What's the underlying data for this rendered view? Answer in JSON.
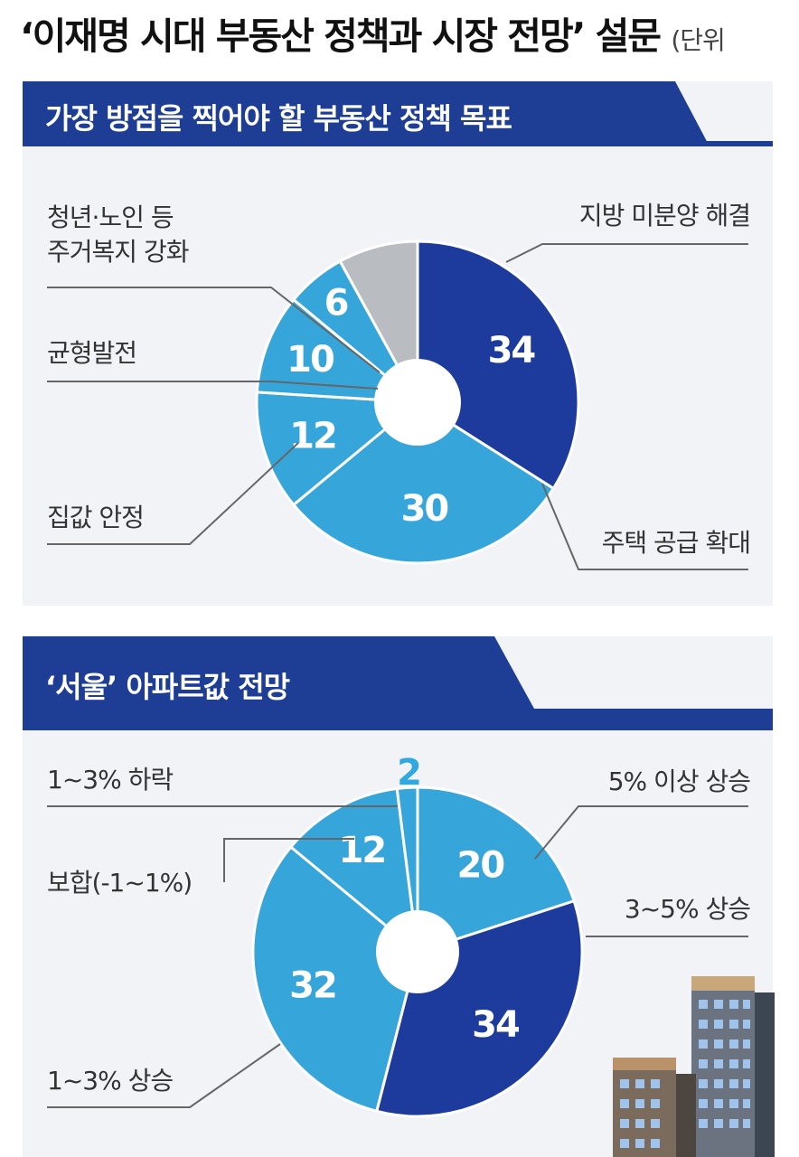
{
  "title": "‘이재명 시대 부동산 정책과 시장 전망’ 설문",
  "unit_label": "(단위",
  "colors": {
    "navy": "#1d3b9c",
    "cyan": "#36a5da",
    "gray": "#b9bcc1",
    "header": "#1e3d95",
    "panel": "#f2f3f6",
    "value_on_dark": "#ffffff",
    "value_outside": "#30a9e0"
  },
  "chart_data": [
    {
      "type": "pie",
      "title": "가장 방점을 찍어야 할 부동산 정책 목표",
      "slices": [
        {
          "label": "지방 미분양 해결",
          "value": 34,
          "color": "#1d3b9c",
          "value_text": "34"
        },
        {
          "label": "주택 공급 확대",
          "value": 30,
          "color": "#36a5da",
          "value_text": "30"
        },
        {
          "label": "집값 안정",
          "value": 12,
          "color": "#36a5da",
          "value_text": "12"
        },
        {
          "label": "균형발전",
          "value": 10,
          "color": "#36a5da",
          "value_text": "10"
        },
        {
          "label": "청년·노인 등\n주거복지 강화",
          "value": 6,
          "color": "#36a5da",
          "value_text": "6"
        },
        {
          "label": "",
          "value": 8,
          "color": "#b9bcc1",
          "value_text": ""
        }
      ]
    },
    {
      "type": "pie",
      "title": "‘서울’ 아파트값 전망",
      "slices": [
        {
          "label": "5% 이상 상승",
          "value": 20,
          "color": "#36a5da",
          "value_text": "20"
        },
        {
          "label": "3~5% 상승",
          "value": 34,
          "color": "#1d3b9c",
          "value_text": "34"
        },
        {
          "label": "1~3% 상승",
          "value": 32,
          "color": "#36a5da",
          "value_text": "32"
        },
        {
          "label": "보합(-1~1%)",
          "value": 12,
          "color": "#36a5da",
          "value_text": "12"
        },
        {
          "label": "1~3% 하락",
          "value": 2,
          "color": "#36a5da",
          "value_text": "2"
        }
      ]
    }
  ]
}
